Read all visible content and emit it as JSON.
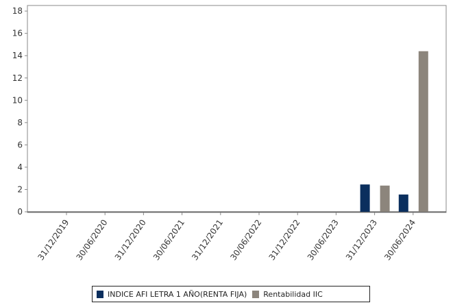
{
  "chart_data": {
    "type": "bar",
    "categories": [
      "31/12/2019",
      "30/06/2020",
      "31/12/2020",
      "30/06/2021",
      "31/12/2021",
      "30/06/2022",
      "31/12/2022",
      "30/06/2023",
      "31/12/2023",
      "30/06/2024"
    ],
    "series": [
      {
        "name": "INDICE AFI LETRA 1 AÑO(RENTA FIJA)",
        "color": "#0b2f5e",
        "values": [
          0,
          0,
          0,
          0,
          0,
          0,
          0,
          0,
          2.45,
          1.55
        ]
      },
      {
        "name": "Rentabilidad IIC",
        "color": "#8c857c",
        "values": [
          0,
          0,
          0,
          0,
          0,
          0,
          0,
          0,
          2.35,
          14.4
        ]
      }
    ],
    "yticks": [
      0,
      2,
      4,
      6,
      8,
      10,
      12,
      14,
      16,
      18
    ],
    "ylim": [
      0,
      18.5
    ],
    "grid": false,
    "legend_position": "bottom"
  }
}
